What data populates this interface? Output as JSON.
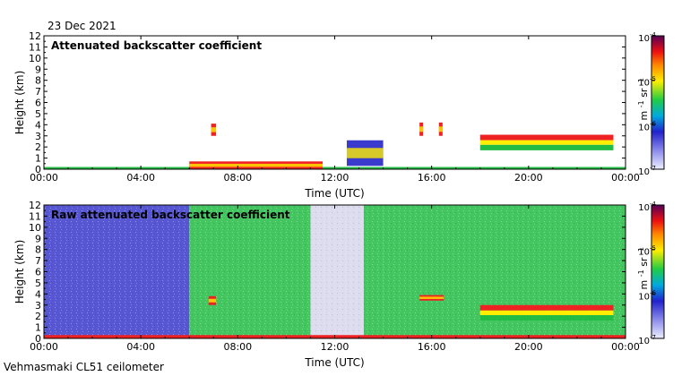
{
  "date_label": "23 Dec 2021",
  "instrument_label": "Vehmasmaki CL51 ceilometer",
  "colors": {
    "clear_sky": "#dcdcee",
    "low_signal": "#3a3acc",
    "mid_signal": "#22bb44",
    "high_signal": "#ffee00",
    "strong_signal": "#ee2222",
    "axes": "#000000"
  },
  "chart_data": [
    {
      "type": "heatmap",
      "title": "Attenuated backscatter coefficient",
      "xlabel": "Time (UTC)",
      "ylabel": "Height (km)",
      "x_ticks": [
        "00:00",
        "04:00",
        "08:00",
        "12:00",
        "16:00",
        "20:00",
        "00:00"
      ],
      "y_ticks": [
        "0",
        "1",
        "2",
        "3",
        "4",
        "5",
        "6",
        "7",
        "8",
        "9",
        "10",
        "11",
        "12"
      ],
      "xlim_hours": [
        0,
        24
      ],
      "ylim": [
        0,
        12
      ],
      "colorbar": {
        "scale": "log",
        "range": [
          1e-07,
          0.0001
        ],
        "tick_labels": [
          "10",
          "10",
          "10",
          "10"
        ],
        "tick_exponents": [
          "-4",
          "-5",
          "-6",
          "-7"
        ],
        "unit_base": [
          "m",
          "sr"
        ],
        "unit_exponents": [
          "-1",
          "-1"
        ]
      },
      "features": [
        {
          "kind": "surface_layer",
          "t_start": 0,
          "t_end": 24,
          "h_top": 0.2,
          "level": 2
        },
        {
          "kind": "aerosol_layer",
          "t_start": 6.0,
          "t_end": 11.5,
          "h_top": 0.7,
          "level": 3
        },
        {
          "kind": "cloud",
          "t_start": 6.9,
          "t_end": 7.1,
          "h_bottom": 3.0,
          "h_top": 4.1,
          "level": 3
        },
        {
          "kind": "cloud",
          "t_start": 12.5,
          "t_end": 14.0,
          "h_bottom": 0.3,
          "h_top": 2.6,
          "level": 1
        },
        {
          "kind": "cloud",
          "t_start": 15.5,
          "t_end": 15.65,
          "h_bottom": 3.0,
          "h_top": 4.2,
          "level": 3
        },
        {
          "kind": "cloud",
          "t_start": 16.3,
          "t_end": 16.45,
          "h_bottom": 3.0,
          "h_top": 4.2,
          "level": 3
        },
        {
          "kind": "cloud_layer",
          "t_start": 18.0,
          "t_end": 23.5,
          "h_bottom": 1.7,
          "h_top": 3.1,
          "level": 3
        }
      ]
    },
    {
      "type": "heatmap",
      "title": "Raw attenuated backscatter coefficient",
      "xlabel": "Time (UTC)",
      "ylabel": "Height (km)",
      "x_ticks": [
        "00:00",
        "04:00",
        "08:00",
        "12:00",
        "16:00",
        "20:00",
        "00:00"
      ],
      "y_ticks": [
        "0",
        "1",
        "2",
        "3",
        "4",
        "5",
        "6",
        "7",
        "8",
        "9",
        "10",
        "11",
        "12"
      ],
      "xlim_hours": [
        0,
        24
      ],
      "ylim": [
        0,
        12
      ],
      "colorbar": {
        "scale": "log",
        "range": [
          1e-07,
          0.0001
        ],
        "tick_labels": [
          "10",
          "10",
          "10",
          "10"
        ],
        "tick_exponents": [
          "-4",
          "-5",
          "-6",
          "-7"
        ],
        "unit_base": [
          "m",
          "sr"
        ],
        "unit_exponents": [
          "-1",
          "-1"
        ]
      },
      "background_regions": [
        {
          "t_start": 0,
          "t_end": 6.0,
          "level": 1
        },
        {
          "t_start": 6.0,
          "t_end": 11.0,
          "level": 2
        },
        {
          "t_start": 11.0,
          "t_end": 13.2,
          "level": 0
        },
        {
          "t_start": 13.2,
          "t_end": 14.0,
          "level": 2
        },
        {
          "t_start": 14.0,
          "t_end": 24,
          "level": 2
        }
      ],
      "features": [
        {
          "kind": "surface_layer",
          "t_start": 0,
          "t_end": 24,
          "h_top": 0.3,
          "level": 3
        },
        {
          "kind": "cloud",
          "t_start": 6.8,
          "t_end": 7.1,
          "h_bottom": 3.0,
          "h_top": 3.8,
          "level": 3
        },
        {
          "kind": "cloud",
          "t_start": 15.5,
          "t_end": 16.5,
          "h_bottom": 3.4,
          "h_top": 3.9,
          "level": 3
        },
        {
          "kind": "cloud_layer",
          "t_start": 18.0,
          "t_end": 23.5,
          "h_bottom": 1.6,
          "h_top": 3.0,
          "level": 3
        }
      ]
    }
  ]
}
